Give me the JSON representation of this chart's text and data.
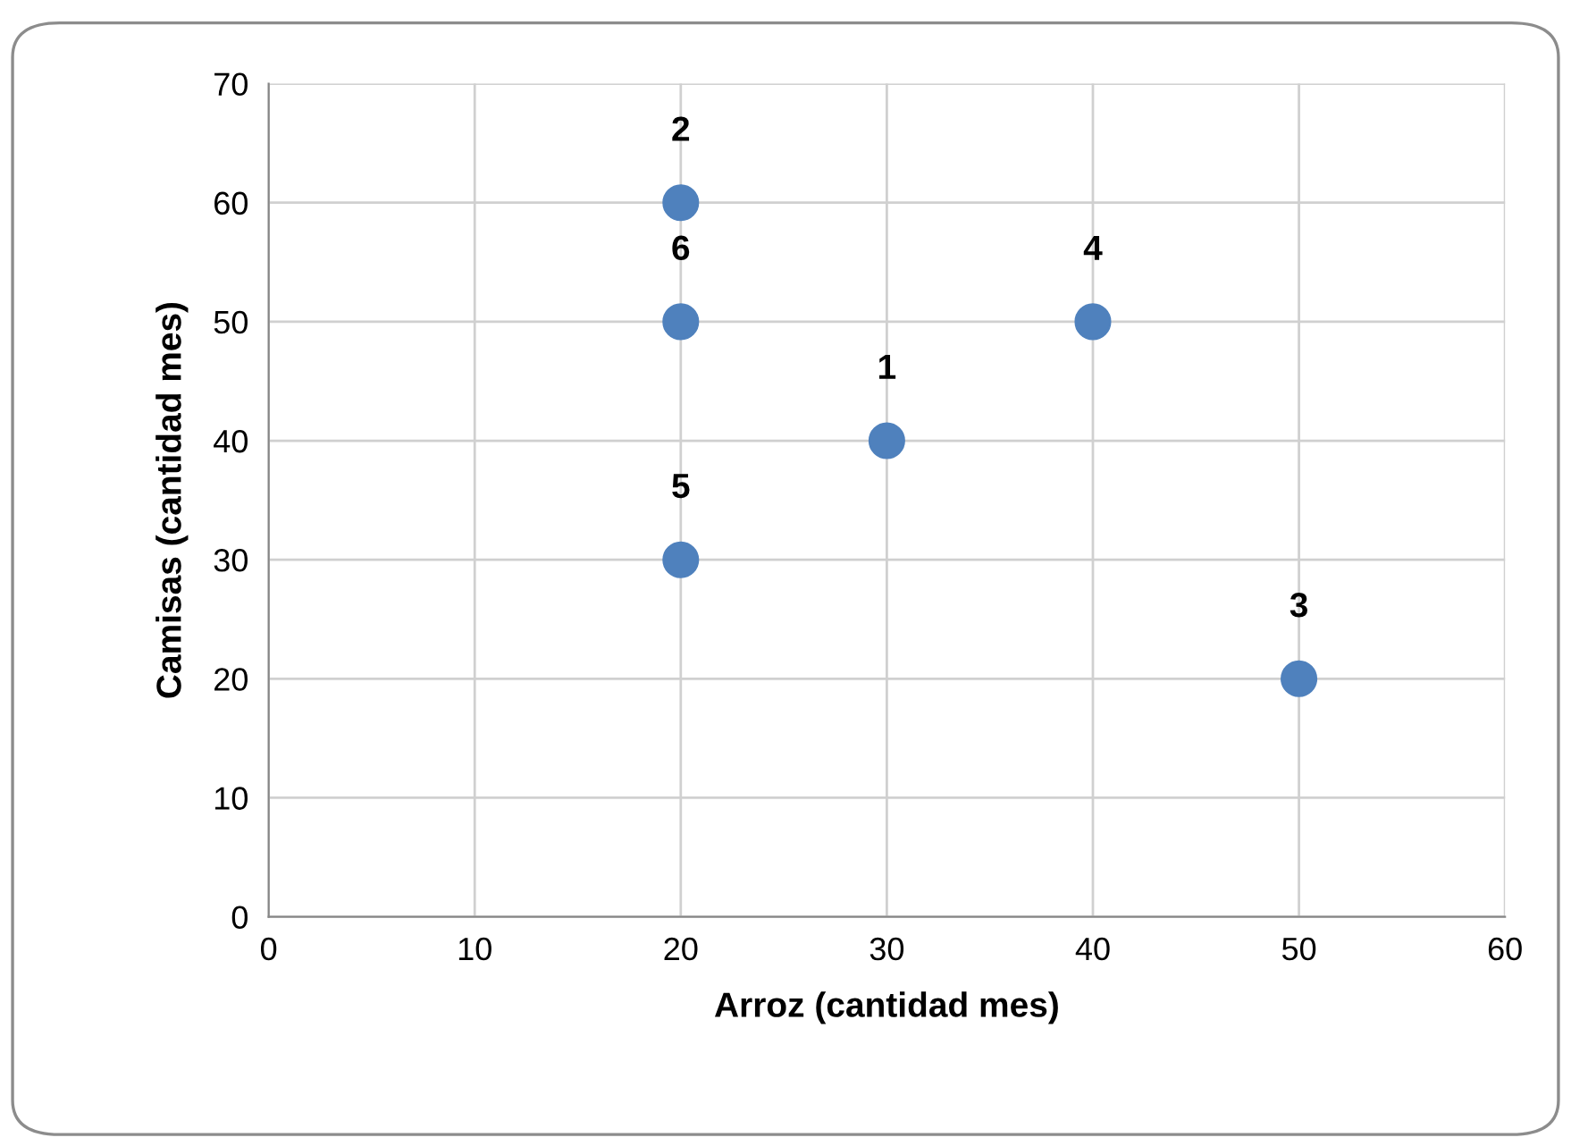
{
  "chart_data": {
    "type": "scatter",
    "xlabel": "Arroz (cantidad mes)",
    "ylabel": "Camisas (cantidad mes)",
    "x": [
      30,
      20,
      50,
      40,
      20,
      20
    ],
    "series": [
      {
        "color": "#4f81bd",
        "values": [
          40,
          60,
          20,
          50,
          30,
          50
        ]
      }
    ],
    "annotations": [
      {
        "text": "1",
        "x": 30,
        "y": 40
      },
      {
        "text": "2",
        "x": 20,
        "y": 60
      },
      {
        "text": "3",
        "x": 50,
        "y": 20
      },
      {
        "text": "4",
        "x": 40,
        "y": 50
      },
      {
        "text": "5",
        "x": 20,
        "y": 30
      },
      {
        "text": "6",
        "x": 20,
        "y": 50
      }
    ],
    "xlim": [
      0,
      60
    ],
    "xticks": [
      0,
      10,
      20,
      30,
      40,
      50,
      60
    ],
    "ylim": [
      0,
      70
    ],
    "yticks": [
      0,
      10,
      20,
      30,
      40,
      50,
      60,
      70
    ],
    "grid": true,
    "marker": "circle",
    "legend": false
  }
}
